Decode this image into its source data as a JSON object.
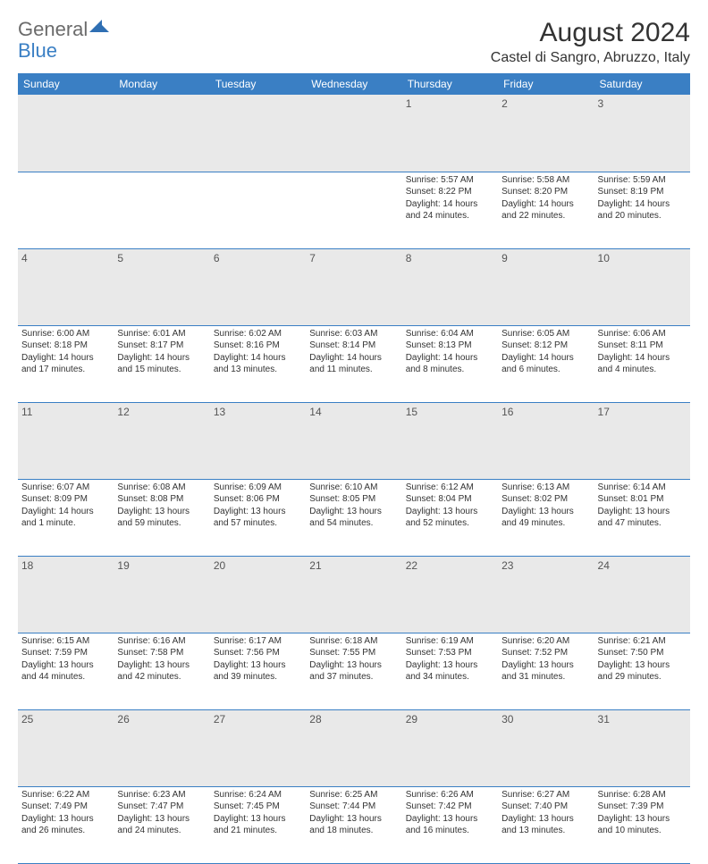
{
  "brand": {
    "general": "General",
    "blue": "Blue"
  },
  "title": "August 2024",
  "location": "Castel di Sangro, Abruzzo, Italy",
  "colors": {
    "header_bg": "#3a7fc4",
    "header_text": "#ffffff",
    "daynum_bg": "#e9e9e9",
    "rule": "#3a7fc4",
    "text": "#333333",
    "logo_gray": "#6b6b6b",
    "logo_blue": "#3a7fc4"
  },
  "weekdays": [
    "Sunday",
    "Monday",
    "Tuesday",
    "Wednesday",
    "Thursday",
    "Friday",
    "Saturday"
  ],
  "weeks": [
    {
      "nums": [
        "",
        "",
        "",
        "",
        "1",
        "2",
        "3"
      ],
      "cells": [
        null,
        null,
        null,
        null,
        {
          "sunrise": "Sunrise: 5:57 AM",
          "sunset": "Sunset: 8:22 PM",
          "daylight": "Daylight: 14 hours and 24 minutes."
        },
        {
          "sunrise": "Sunrise: 5:58 AM",
          "sunset": "Sunset: 8:20 PM",
          "daylight": "Daylight: 14 hours and 22 minutes."
        },
        {
          "sunrise": "Sunrise: 5:59 AM",
          "sunset": "Sunset: 8:19 PM",
          "daylight": "Daylight: 14 hours and 20 minutes."
        }
      ]
    },
    {
      "nums": [
        "4",
        "5",
        "6",
        "7",
        "8",
        "9",
        "10"
      ],
      "cells": [
        {
          "sunrise": "Sunrise: 6:00 AM",
          "sunset": "Sunset: 8:18 PM",
          "daylight": "Daylight: 14 hours and 17 minutes."
        },
        {
          "sunrise": "Sunrise: 6:01 AM",
          "sunset": "Sunset: 8:17 PM",
          "daylight": "Daylight: 14 hours and 15 minutes."
        },
        {
          "sunrise": "Sunrise: 6:02 AM",
          "sunset": "Sunset: 8:16 PM",
          "daylight": "Daylight: 14 hours and 13 minutes."
        },
        {
          "sunrise": "Sunrise: 6:03 AM",
          "sunset": "Sunset: 8:14 PM",
          "daylight": "Daylight: 14 hours and 11 minutes."
        },
        {
          "sunrise": "Sunrise: 6:04 AM",
          "sunset": "Sunset: 8:13 PM",
          "daylight": "Daylight: 14 hours and 8 minutes."
        },
        {
          "sunrise": "Sunrise: 6:05 AM",
          "sunset": "Sunset: 8:12 PM",
          "daylight": "Daylight: 14 hours and 6 minutes."
        },
        {
          "sunrise": "Sunrise: 6:06 AM",
          "sunset": "Sunset: 8:11 PM",
          "daylight": "Daylight: 14 hours and 4 minutes."
        }
      ]
    },
    {
      "nums": [
        "11",
        "12",
        "13",
        "14",
        "15",
        "16",
        "17"
      ],
      "cells": [
        {
          "sunrise": "Sunrise: 6:07 AM",
          "sunset": "Sunset: 8:09 PM",
          "daylight": "Daylight: 14 hours and 1 minute."
        },
        {
          "sunrise": "Sunrise: 6:08 AM",
          "sunset": "Sunset: 8:08 PM",
          "daylight": "Daylight: 13 hours and 59 minutes."
        },
        {
          "sunrise": "Sunrise: 6:09 AM",
          "sunset": "Sunset: 8:06 PM",
          "daylight": "Daylight: 13 hours and 57 minutes."
        },
        {
          "sunrise": "Sunrise: 6:10 AM",
          "sunset": "Sunset: 8:05 PM",
          "daylight": "Daylight: 13 hours and 54 minutes."
        },
        {
          "sunrise": "Sunrise: 6:12 AM",
          "sunset": "Sunset: 8:04 PM",
          "daylight": "Daylight: 13 hours and 52 minutes."
        },
        {
          "sunrise": "Sunrise: 6:13 AM",
          "sunset": "Sunset: 8:02 PM",
          "daylight": "Daylight: 13 hours and 49 minutes."
        },
        {
          "sunrise": "Sunrise: 6:14 AM",
          "sunset": "Sunset: 8:01 PM",
          "daylight": "Daylight: 13 hours and 47 minutes."
        }
      ]
    },
    {
      "nums": [
        "18",
        "19",
        "20",
        "21",
        "22",
        "23",
        "24"
      ],
      "cells": [
        {
          "sunrise": "Sunrise: 6:15 AM",
          "sunset": "Sunset: 7:59 PM",
          "daylight": "Daylight: 13 hours and 44 minutes."
        },
        {
          "sunrise": "Sunrise: 6:16 AM",
          "sunset": "Sunset: 7:58 PM",
          "daylight": "Daylight: 13 hours and 42 minutes."
        },
        {
          "sunrise": "Sunrise: 6:17 AM",
          "sunset": "Sunset: 7:56 PM",
          "daylight": "Daylight: 13 hours and 39 minutes."
        },
        {
          "sunrise": "Sunrise: 6:18 AM",
          "sunset": "Sunset: 7:55 PM",
          "daylight": "Daylight: 13 hours and 37 minutes."
        },
        {
          "sunrise": "Sunrise: 6:19 AM",
          "sunset": "Sunset: 7:53 PM",
          "daylight": "Daylight: 13 hours and 34 minutes."
        },
        {
          "sunrise": "Sunrise: 6:20 AM",
          "sunset": "Sunset: 7:52 PM",
          "daylight": "Daylight: 13 hours and 31 minutes."
        },
        {
          "sunrise": "Sunrise: 6:21 AM",
          "sunset": "Sunset: 7:50 PM",
          "daylight": "Daylight: 13 hours and 29 minutes."
        }
      ]
    },
    {
      "nums": [
        "25",
        "26",
        "27",
        "28",
        "29",
        "30",
        "31"
      ],
      "cells": [
        {
          "sunrise": "Sunrise: 6:22 AM",
          "sunset": "Sunset: 7:49 PM",
          "daylight": "Daylight: 13 hours and 26 minutes."
        },
        {
          "sunrise": "Sunrise: 6:23 AM",
          "sunset": "Sunset: 7:47 PM",
          "daylight": "Daylight: 13 hours and 24 minutes."
        },
        {
          "sunrise": "Sunrise: 6:24 AM",
          "sunset": "Sunset: 7:45 PM",
          "daylight": "Daylight: 13 hours and 21 minutes."
        },
        {
          "sunrise": "Sunrise: 6:25 AM",
          "sunset": "Sunset: 7:44 PM",
          "daylight": "Daylight: 13 hours and 18 minutes."
        },
        {
          "sunrise": "Sunrise: 6:26 AM",
          "sunset": "Sunset: 7:42 PM",
          "daylight": "Daylight: 13 hours and 16 minutes."
        },
        {
          "sunrise": "Sunrise: 6:27 AM",
          "sunset": "Sunset: 7:40 PM",
          "daylight": "Daylight: 13 hours and 13 minutes."
        },
        {
          "sunrise": "Sunrise: 6:28 AM",
          "sunset": "Sunset: 7:39 PM",
          "daylight": "Daylight: 13 hours and 10 minutes."
        }
      ]
    }
  ]
}
